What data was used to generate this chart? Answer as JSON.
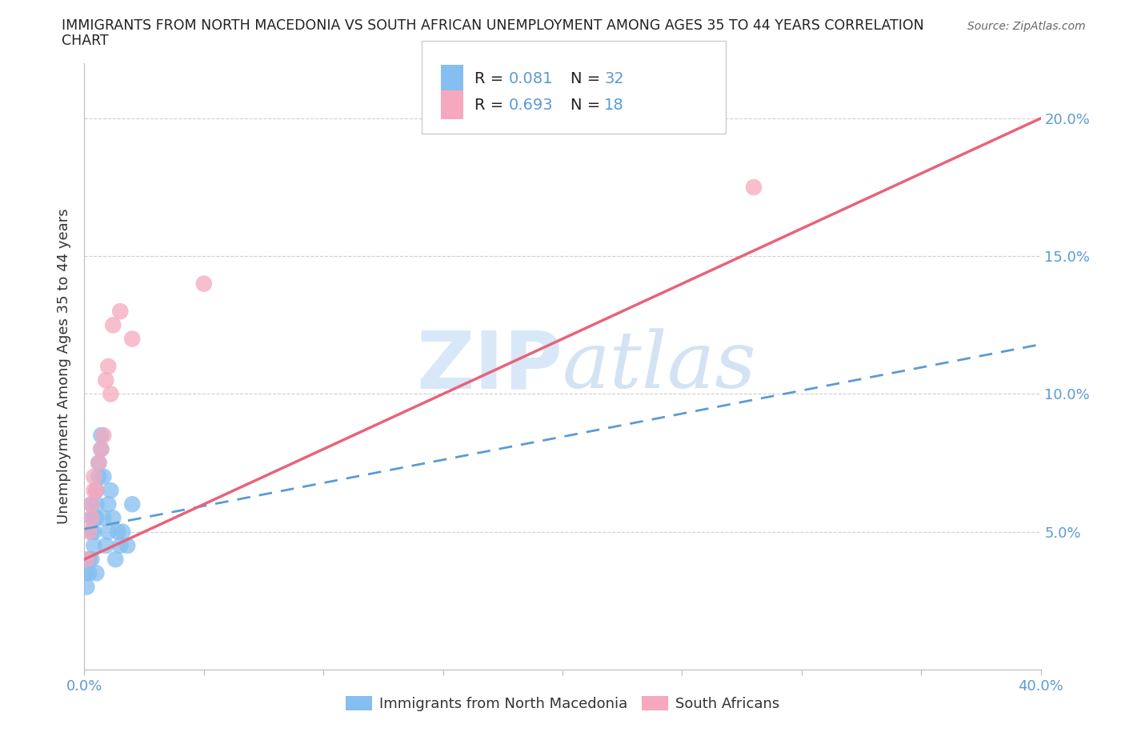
{
  "title_line1": "IMMIGRANTS FROM NORTH MACEDONIA VS SOUTH AFRICAN UNEMPLOYMENT AMONG AGES 35 TO 44 YEARS CORRELATION",
  "title_line2": "CHART",
  "source": "Source: ZipAtlas.com",
  "ylabel": "Unemployment Among Ages 35 to 44 years",
  "xlim": [
    0.0,
    0.4
  ],
  "ylim": [
    0.0,
    0.22
  ],
  "xticks": [
    0.0,
    0.05,
    0.1,
    0.15,
    0.2,
    0.25,
    0.3,
    0.35,
    0.4
  ],
  "yticks": [
    0.0,
    0.05,
    0.1,
    0.15,
    0.2
  ],
  "blue_color": "#85BEF0",
  "pink_color": "#F5A8BE",
  "blue_line_color": "#5B9BD5",
  "pink_line_color": "#E8637A",
  "background_color": "#FFFFFF",
  "grid_color": "#D0D0D0",
  "tick_color": "#5B9BD5",
  "watermark_color": "#D8E8F8",
  "scatter_blue_x": [
    0.001,
    0.001,
    0.002,
    0.002,
    0.003,
    0.003,
    0.003,
    0.003,
    0.004,
    0.004,
    0.004,
    0.005,
    0.005,
    0.005,
    0.005,
    0.006,
    0.006,
    0.007,
    0.007,
    0.008,
    0.008,
    0.009,
    0.01,
    0.01,
    0.011,
    0.012,
    0.013,
    0.014,
    0.015,
    0.016,
    0.018,
    0.02
  ],
  "scatter_blue_y": [
    0.035,
    0.03,
    0.04,
    0.035,
    0.055,
    0.05,
    0.06,
    0.04,
    0.05,
    0.045,
    0.055,
    0.065,
    0.06,
    0.055,
    0.035,
    0.075,
    0.07,
    0.08,
    0.085,
    0.055,
    0.07,
    0.045,
    0.05,
    0.06,
    0.065,
    0.055,
    0.04,
    0.05,
    0.045,
    0.05,
    0.045,
    0.06
  ],
  "scatter_pink_x": [
    0.001,
    0.002,
    0.003,
    0.003,
    0.004,
    0.004,
    0.005,
    0.006,
    0.007,
    0.008,
    0.009,
    0.01,
    0.011,
    0.012,
    0.015,
    0.02,
    0.05,
    0.28
  ],
  "scatter_pink_y": [
    0.04,
    0.05,
    0.06,
    0.055,
    0.065,
    0.07,
    0.065,
    0.075,
    0.08,
    0.085,
    0.105,
    0.11,
    0.1,
    0.125,
    0.13,
    0.12,
    0.14,
    0.175
  ],
  "blue_trendline_x0": 0.0,
  "blue_trendline_y0": 0.051,
  "blue_trendline_x1": 0.4,
  "blue_trendline_y1": 0.118,
  "pink_trendline_x0": 0.0,
  "pink_trendline_y0": 0.04,
  "pink_trendline_x1": 0.4,
  "pink_trendline_y1": 0.2
}
